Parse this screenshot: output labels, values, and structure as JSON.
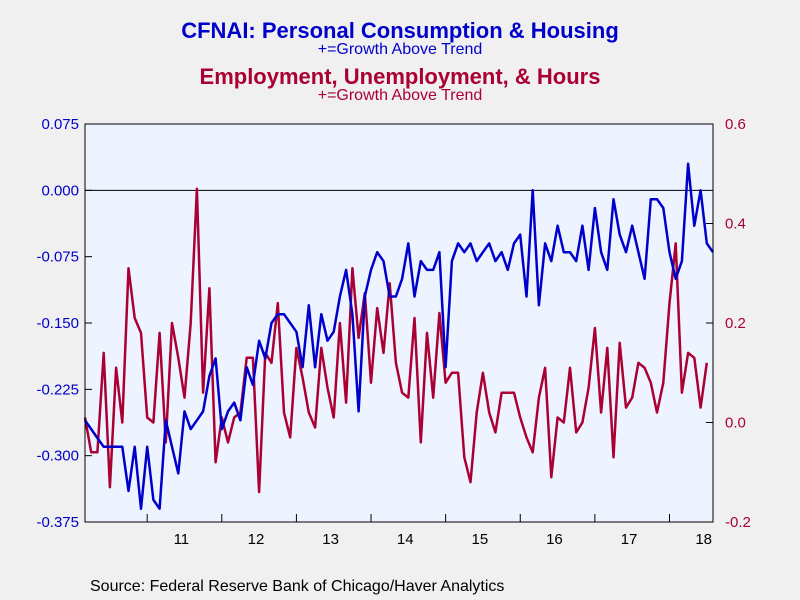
{
  "titles": {
    "title1": "CFNAI: Personal Consumption & Housing",
    "subtitle1": "+=Growth Above Trend",
    "title2": "Employment, Unemployment, & Hours",
    "subtitle2": "+=Growth Above Trend"
  },
  "source": "Source:  Federal Reserve Bank of Chicago/Haver Analytics",
  "colors": {
    "blue": "#0000cc",
    "red": "#aa0033",
    "plot_bg": "#eef4ff",
    "page_bg": "#f0f0f0"
  },
  "chart_data": {
    "type": "line",
    "x_tick_labels": [
      "11",
      "12",
      "13",
      "14",
      "15",
      "16",
      "17",
      "18"
    ],
    "start": "2010-03",
    "frequency": "monthly",
    "grid": false,
    "zero_line": true,
    "y_left": {
      "min": -0.375,
      "max": 0.075,
      "ticks": [
        "0.075",
        "0.000",
        "-0.075",
        "-0.150",
        "-0.225",
        "-0.300",
        "-0.375"
      ],
      "tick_values": [
        0.075,
        0.0,
        -0.075,
        -0.15,
        -0.225,
        -0.3,
        -0.375
      ]
    },
    "y_right": {
      "min": -0.2,
      "max": 0.6,
      "ticks": [
        "0.6",
        "0.4",
        "0.2",
        "0.0",
        "-0.2"
      ],
      "tick_values": [
        0.6,
        0.4,
        0.2,
        0.0,
        -0.2
      ]
    },
    "series": [
      {
        "name": "CFNAI: Personal Consumption & Housing",
        "axis": "left",
        "color": "#0000cc",
        "values": [
          -0.26,
          -0.27,
          -0.28,
          -0.29,
          -0.29,
          -0.29,
          -0.29,
          -0.34,
          -0.29,
          -0.36,
          -0.29,
          -0.35,
          -0.36,
          -0.26,
          -0.29,
          -0.32,
          -0.25,
          -0.27,
          -0.26,
          -0.25,
          -0.21,
          -0.19,
          -0.27,
          -0.25,
          -0.24,
          -0.26,
          -0.2,
          -0.22,
          -0.17,
          -0.19,
          -0.15,
          -0.14,
          -0.14,
          -0.15,
          -0.16,
          -0.2,
          -0.13,
          -0.2,
          -0.14,
          -0.17,
          -0.16,
          -0.12,
          -0.09,
          -0.14,
          -0.25,
          -0.12,
          -0.09,
          -0.07,
          -0.08,
          -0.12,
          -0.12,
          -0.1,
          -0.06,
          -0.12,
          -0.08,
          -0.09,
          -0.09,
          -0.07,
          -0.2,
          -0.08,
          -0.06,
          -0.07,
          -0.06,
          -0.08,
          -0.07,
          -0.06,
          -0.08,
          -0.07,
          -0.09,
          -0.06,
          -0.05,
          -0.12,
          0.0,
          -0.13,
          -0.06,
          -0.08,
          -0.04,
          -0.07,
          -0.07,
          -0.08,
          -0.04,
          -0.09,
          -0.02,
          -0.07,
          -0.09,
          -0.01,
          -0.05,
          -0.07,
          -0.04,
          -0.07,
          -0.1,
          -0.01,
          -0.01,
          -0.02,
          -0.07,
          -0.1,
          -0.08,
          0.03,
          -0.04,
          0.0,
          -0.06,
          -0.07
        ]
      },
      {
        "name": "Employment, Unemployment, & Hours",
        "axis": "right",
        "color": "#aa0033",
        "values": [
          0.01,
          -0.06,
          -0.06,
          0.14,
          -0.13,
          0.11,
          0.0,
          0.31,
          0.21,
          0.18,
          0.01,
          0.0,
          0.18,
          -0.04,
          0.2,
          0.13,
          0.05,
          0.2,
          0.47,
          0.06,
          0.27,
          -0.08,
          0.01,
          -0.04,
          0.01,
          0.02,
          0.13,
          0.13,
          -0.14,
          0.14,
          0.12,
          0.24,
          0.02,
          -0.03,
          0.15,
          0.09,
          0.02,
          -0.01,
          0.15,
          0.07,
          0.01,
          0.2,
          0.04,
          0.31,
          0.17,
          0.26,
          0.08,
          0.23,
          0.14,
          0.28,
          0.12,
          0.06,
          0.05,
          0.21,
          -0.04,
          0.18,
          0.05,
          0.22,
          0.08,
          0.1,
          0.1,
          -0.07,
          -0.12,
          0.02,
          0.1,
          0.02,
          -0.02,
          0.06,
          0.06,
          0.06,
          0.01,
          -0.03,
          -0.06,
          0.05,
          0.11,
          -0.11,
          0.01,
          0.0,
          0.11,
          -0.02,
          0.0,
          0.07,
          0.19,
          0.02,
          0.15,
          -0.07,
          0.16,
          0.03,
          0.05,
          0.12,
          0.11,
          0.08,
          0.02,
          0.08,
          0.24,
          0.36,
          0.06,
          0.14,
          0.13,
          0.03,
          0.12
        ]
      }
    ]
  }
}
